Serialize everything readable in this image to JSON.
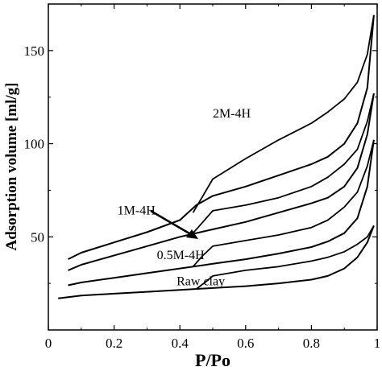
{
  "chart_data": {
    "type": "line",
    "title": "",
    "xlabel": "P/Po",
    "ylabel": "Adsorption volume [ml/g]",
    "xlim": [
      0,
      1.0
    ],
    "ylim": [
      0,
      175
    ],
    "xticks": [
      0,
      0.2,
      0.4,
      0.6,
      0.8,
      1.0
    ],
    "xtick_labels": [
      "0",
      "0.2",
      "0.4",
      "0.6",
      "0.8",
      "1"
    ],
    "yticks": [
      50,
      100,
      150
    ],
    "ytick_labels": [
      "50",
      "100",
      "150"
    ],
    "grid": false,
    "legend": "none",
    "series": [
      {
        "name": "Raw clay",
        "adsorption": [
          [
            0.03,
            17
          ],
          [
            0.1,
            18.5
          ],
          [
            0.2,
            19.5
          ],
          [
            0.3,
            20.5
          ],
          [
            0.4,
            21.5
          ],
          [
            0.5,
            22.5
          ],
          [
            0.6,
            23.5
          ],
          [
            0.7,
            25
          ],
          [
            0.8,
            27
          ],
          [
            0.85,
            29
          ],
          [
            0.9,
            33
          ],
          [
            0.94,
            39
          ],
          [
            0.97,
            47
          ],
          [
            0.99,
            56
          ]
        ],
        "desorption": [
          [
            0.99,
            56
          ],
          [
            0.97,
            50
          ],
          [
            0.94,
            46
          ],
          [
            0.9,
            42
          ],
          [
            0.85,
            39
          ],
          [
            0.8,
            37
          ],
          [
            0.7,
            34
          ],
          [
            0.6,
            32
          ],
          [
            0.5,
            29
          ],
          [
            0.48,
            26
          ],
          [
            0.45,
            22
          ]
        ]
      },
      {
        "name": "0.5M-4H",
        "adsorption": [
          [
            0.06,
            24
          ],
          [
            0.1,
            25.5
          ],
          [
            0.2,
            28
          ],
          [
            0.3,
            30.5
          ],
          [
            0.4,
            33
          ],
          [
            0.5,
            35.5
          ],
          [
            0.6,
            38
          ],
          [
            0.7,
            41
          ],
          [
            0.8,
            44.5
          ],
          [
            0.85,
            47.5
          ],
          [
            0.9,
            52
          ],
          [
            0.94,
            60
          ],
          [
            0.97,
            77
          ],
          [
            0.99,
            102
          ]
        ],
        "desorption": [
          [
            0.99,
            102
          ],
          [
            0.97,
            88
          ],
          [
            0.94,
            74
          ],
          [
            0.9,
            66
          ],
          [
            0.85,
            59
          ],
          [
            0.8,
            55
          ],
          [
            0.7,
            51
          ],
          [
            0.6,
            48
          ],
          [
            0.5,
            45
          ],
          [
            0.47,
            40
          ],
          [
            0.44,
            34
          ]
        ]
      },
      {
        "name": "1M-4H",
        "adsorption": [
          [
            0.06,
            32
          ],
          [
            0.1,
            35
          ],
          [
            0.2,
            40
          ],
          [
            0.3,
            45
          ],
          [
            0.4,
            50
          ],
          [
            0.5,
            54
          ],
          [
            0.6,
            58
          ],
          [
            0.7,
            63
          ],
          [
            0.8,
            68
          ],
          [
            0.85,
            71
          ],
          [
            0.9,
            77
          ],
          [
            0.94,
            87
          ],
          [
            0.97,
            105
          ],
          [
            0.99,
            127
          ]
        ],
        "desorption": [
          [
            0.99,
            127
          ],
          [
            0.97,
            112
          ],
          [
            0.94,
            97
          ],
          [
            0.9,
            89
          ],
          [
            0.85,
            82
          ],
          [
            0.8,
            77
          ],
          [
            0.7,
            71
          ],
          [
            0.6,
            67
          ],
          [
            0.5,
            64
          ],
          [
            0.47,
            58
          ],
          [
            0.44,
            52
          ]
        ]
      },
      {
        "name": "2M-4H",
        "adsorption": [
          [
            0.06,
            38
          ],
          [
            0.1,
            41.5
          ],
          [
            0.2,
            47
          ],
          [
            0.3,
            52.5
          ],
          [
            0.4,
            59
          ],
          [
            0.45,
            67
          ],
          [
            0.5,
            72
          ],
          [
            0.6,
            77
          ],
          [
            0.7,
            83
          ],
          [
            0.8,
            89
          ],
          [
            0.85,
            93
          ],
          [
            0.9,
            100
          ],
          [
            0.94,
            111
          ],
          [
            0.97,
            130
          ],
          [
            0.99,
            169
          ]
        ],
        "desorption": [
          [
            0.99,
            169
          ],
          [
            0.97,
            148
          ],
          [
            0.94,
            133
          ],
          [
            0.9,
            124
          ],
          [
            0.85,
            117
          ],
          [
            0.8,
            111
          ],
          [
            0.7,
            102
          ],
          [
            0.6,
            92
          ],
          [
            0.5,
            81
          ],
          [
            0.47,
            72
          ],
          [
            0.44,
            63
          ]
        ]
      }
    ],
    "annotations": [
      {
        "text": "2M-4H",
        "x": 0.5,
        "y": 114
      },
      {
        "text": "1M-4H",
        "x": 0.21,
        "y": 62
      },
      {
        "text": "0.5M-4H",
        "x": 0.33,
        "y": 38
      },
      {
        "text": "Raw clay",
        "x": 0.39,
        "y": 24
      }
    ]
  }
}
